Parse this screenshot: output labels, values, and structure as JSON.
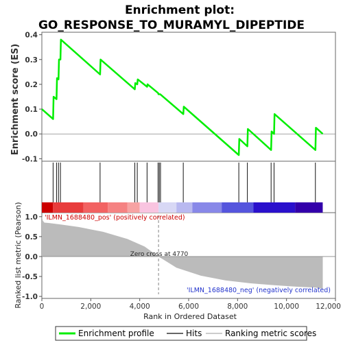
{
  "chart_data": [
    {
      "type": "line",
      "title": "Enrichment plot:",
      "subtitle": "GO_RESPONSE_TO_MURAMYL_DIPEPTIDE",
      "ylabel": "Enrichment score (ES)",
      "ylim": [
        -0.11,
        0.41
      ],
      "yticks": [
        "-0.1",
        "0.0",
        "0.1",
        "0.2",
        "0.3",
        "0.4"
      ],
      "ytick_values": [
        -0.1,
        0.0,
        0.1,
        0.2,
        0.3,
        0.4
      ],
      "xlim": [
        0,
        12000
      ],
      "grid": false,
      "series": [
        {
          "name": "Enrichment profile",
          "color": "#00ee00",
          "x": [
            0,
            460,
            480,
            600,
            620,
            680,
            700,
            760,
            780,
            2380,
            2400,
            3800,
            3820,
            3900,
            3920,
            4300,
            4320,
            4750,
            4770,
            4820,
            4840,
            5780,
            5800,
            8050,
            8070,
            8400,
            8420,
            9370,
            9390,
            9490,
            9510,
            11180,
            11200,
            11480
          ],
          "y": [
            0.1,
            0.06,
            0.15,
            0.14,
            0.225,
            0.22,
            0.3,
            0.3,
            0.38,
            0.24,
            0.3,
            0.18,
            0.205,
            0.2,
            0.22,
            0.19,
            0.2,
            0.165,
            0.16,
            0.16,
            0.16,
            0.08,
            0.11,
            -0.085,
            -0.02,
            -0.05,
            0.02,
            -0.065,
            0.01,
            0.0,
            0.08,
            -0.065,
            0.025,
            0.0
          ]
        }
      ],
      "hits_x": [
        460,
        600,
        680,
        760,
        2380,
        3800,
        3900,
        4300,
        4750,
        4800,
        4850,
        5780,
        8050,
        8400,
        9370,
        9490,
        11180
      ]
    },
    {
      "type": "area",
      "ylabel": "Ranked list metric (Pearson)",
      "xlabel": "Rank in Ordered Dataset",
      "xlim": [
        0,
        12000
      ],
      "ylim": [
        -1.05,
        1.1
      ],
      "yticks": [
        "-1.0",
        "-0.5",
        "0.0",
        "0.5",
        "1.0"
      ],
      "ytick_values": [
        -1.0,
        -0.5,
        0.0,
        0.5,
        1.0
      ],
      "xticks": [
        "0",
        "2,000",
        "4,000",
        "6,000",
        "8,000",
        "10,000",
        "12,000"
      ],
      "xtick_values": [
        0,
        2000,
        4000,
        6000,
        8000,
        10000,
        12000
      ],
      "series": [
        {
          "name": "Ranking metric scores",
          "color": "#bbbbbb",
          "x": [
            0,
            40,
            100,
            300,
            800,
            1500,
            2500,
            3500,
            4200,
            4770,
            5500,
            6500,
            7500,
            8500,
            9500,
            10500,
            11200,
            11400,
            11480
          ],
          "y": [
            1.0,
            0.9,
            0.85,
            0.84,
            0.8,
            0.74,
            0.62,
            0.44,
            0.25,
            0.0,
            -0.28,
            -0.48,
            -0.6,
            -0.67,
            -0.72,
            -0.76,
            -0.78,
            -0.8,
            -0.8
          ]
        }
      ],
      "annotations": {
        "pos_label": "'ILMN_1688480_pos' (positively correlated)",
        "neg_label": "'ILMN_1688480_neg' (negatively correlated)",
        "zero_cross": "Zero cross at 4770",
        "zero_cross_x": 4770
      }
    }
  ],
  "colorbar": {
    "segments": [
      {
        "to": 450,
        "color": "#cc0000"
      },
      {
        "to": 1700,
        "color": "#e83c3c"
      },
      {
        "to": 2700,
        "color": "#f26262"
      },
      {
        "to": 3500,
        "color": "#f58282"
      },
      {
        "to": 4000,
        "color": "#f7a3a3"
      },
      {
        "to": 4770,
        "color": "#f9c4e0"
      },
      {
        "to": 5500,
        "color": "#d8d8f5"
      },
      {
        "to": 6150,
        "color": "#b9b9f0"
      },
      {
        "to": 7350,
        "color": "#8888e8"
      },
      {
        "to": 8650,
        "color": "#5555dd"
      },
      {
        "to": 10350,
        "color": "#2a10cc"
      },
      {
        "to": 11480,
        "color": "#3300aa"
      }
    ]
  },
  "legend": {
    "items": [
      {
        "label": "Enrichment profile",
        "color": "#00ee00",
        "kind": "line"
      },
      {
        "label": "Hits",
        "color": "#666666",
        "kind": "thin"
      },
      {
        "label": "Ranking metric scores",
        "color": "#cccccc",
        "kind": "thin"
      }
    ]
  }
}
